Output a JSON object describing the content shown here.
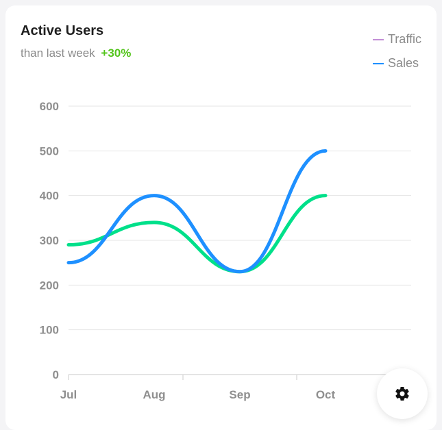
{
  "card": {
    "title": "Active Users",
    "subtitle_text": "than last week",
    "subtitle_delta": "+30%"
  },
  "colors": {
    "traffic_legend": "#c38fd6",
    "traffic_line": "#00e08a",
    "sales": "#1e90ff",
    "delta": "#52c41a"
  },
  "settings_button": {
    "icon": "gear-icon"
  },
  "chart_data": {
    "type": "line",
    "title": "Active Users",
    "categories": [
      "Jul",
      "Aug",
      "Sep",
      "Oct"
    ],
    "series": [
      {
        "name": "Traffic",
        "values": [
          290,
          340,
          230,
          400
        ]
      },
      {
        "name": "Sales",
        "values": [
          250,
          400,
          230,
          500
        ]
      }
    ],
    "yticks": [
      0,
      100,
      200,
      300,
      400,
      500,
      600
    ],
    "ylim": [
      0,
      600
    ],
    "grid": true,
    "legend": "top-right",
    "smooth": true
  }
}
